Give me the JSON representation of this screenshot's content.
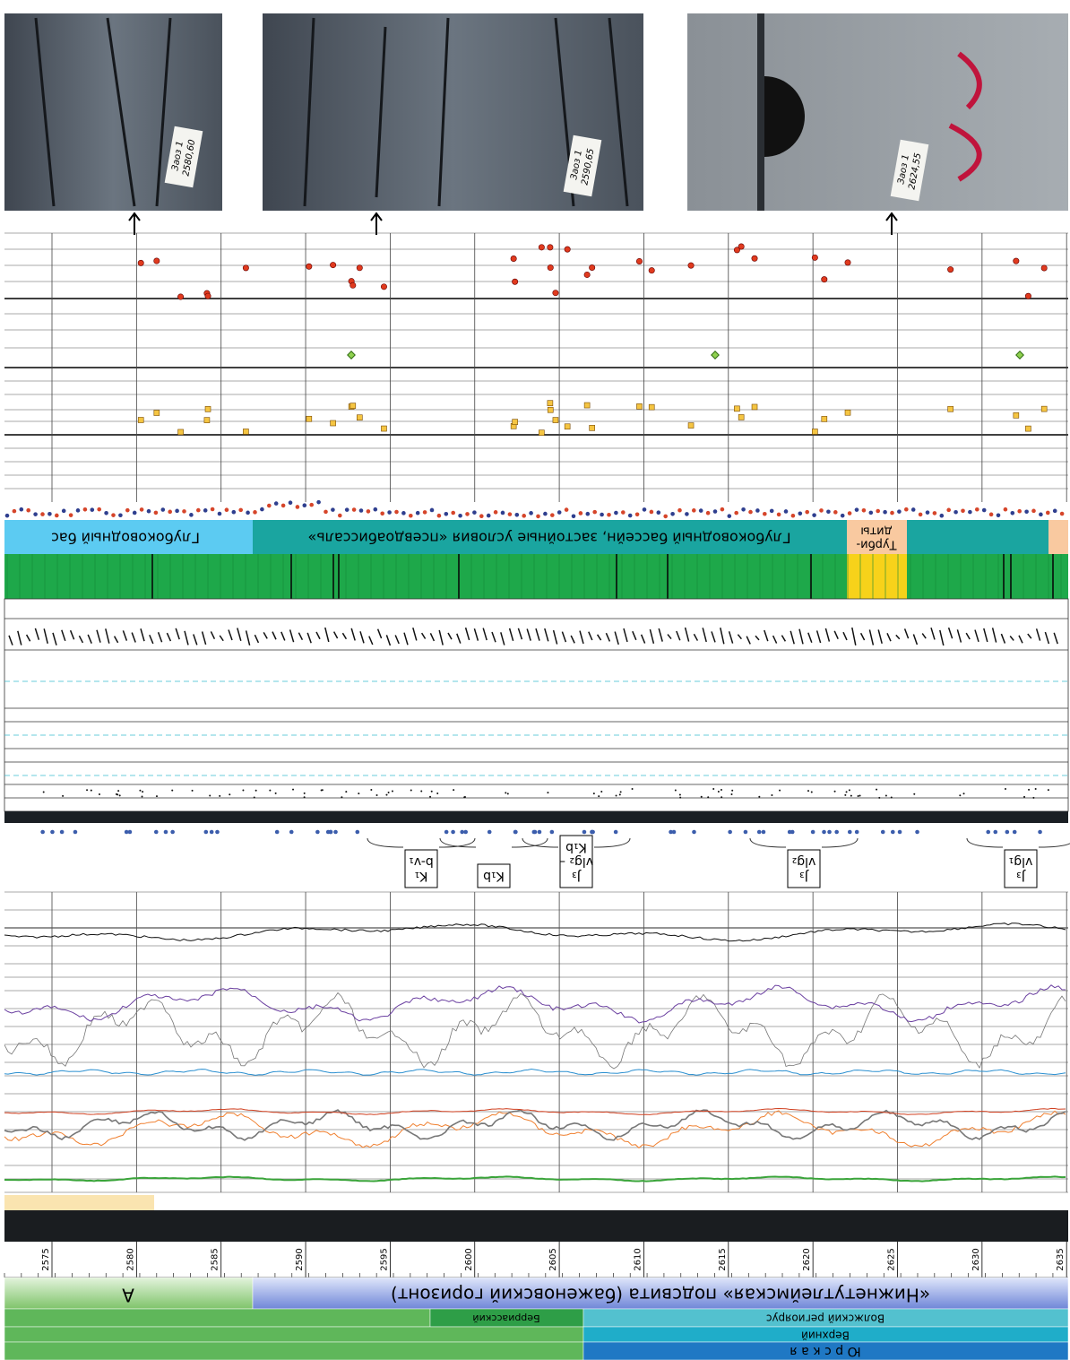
{
  "photos": [
    {
      "lines": [
        "Заоз 1",
        "2580,60"
      ]
    },
    {
      "lines": [
        "Заоз 1",
        "2590,65"
      ]
    },
    {
      "lines": [
        "Заоз 1",
        "2624,55"
      ]
    }
  ],
  "facies": {
    "left": "Глубоководный бас",
    "main": "Глубоководный бассейн, застойные условия «псевдоабиссаль»",
    "turbidites": [
      "Турби-",
      "диты"
    ]
  },
  "units": [
    {
      "lines": [
        "K₁",
        "b-v₁"
      ]
    },
    {
      "lines": [
        "K₁b"
      ]
    },
    {
      "lines": [
        "J₃",
        "vlg₂ –",
        "K₁b"
      ]
    },
    {
      "lines": [
        "J₃",
        "vlg₂"
      ]
    },
    {
      "lines": [
        "J₃",
        "vlg₁"
      ]
    }
  ],
  "depth_axis": {
    "ticks": [
      2575,
      2580,
      2585,
      2590,
      2595,
      2600,
      2605,
      2610,
      2615,
      2620,
      2625,
      2630,
      2635
    ]
  },
  "stratigraphy": {
    "a": "А",
    "subsuite": "«Нижнетутлеймская» подсвита (баженовский горизонт)",
    "stage1": "Берриасский",
    "stage2": "Волжский региоярус",
    "series": "Верхний",
    "system": "Ю р с к а я"
  }
}
